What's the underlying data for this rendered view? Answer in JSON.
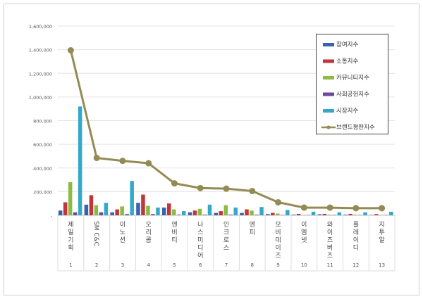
{
  "chart_data": {
    "type": "bar",
    "title": "",
    "xlabel": "",
    "ylabel": "",
    "ylim": [
      0,
      1600000
    ],
    "yticks": [
      "-",
      "200,000",
      "400,000",
      "600,000",
      "800,000",
      "1,000,000",
      "1,200,000",
      "1,400,000",
      "1,600,000"
    ],
    "ytick_values": [
      0,
      200000,
      400000,
      600000,
      800000,
      1000000,
      1200000,
      1400000,
      1600000
    ],
    "categories": [
      "제일기획",
      "SM C&C",
      "이노션",
      "오리콤",
      "엔비티",
      "나스미디어",
      "인크로스",
      "엔피",
      "모비데이즈",
      "이엠넷",
      "와이즈버즈",
      "플레이디",
      "지투알"
    ],
    "ranks": [
      "1",
      "2",
      "3",
      "4",
      "5",
      "6",
      "7",
      "8",
      "9",
      "10",
      "11",
      "12",
      "13"
    ],
    "legend_position": "top-right",
    "grid": true,
    "series": [
      {
        "name": "참여지수",
        "type": "bar",
        "color": "#3a62b0",
        "values": [
          40000,
          90000,
          25000,
          105000,
          65000,
          25000,
          20000,
          20000,
          10000,
          5000,
          8000,
          5000,
          3000
        ]
      },
      {
        "name": "소통지수",
        "type": "bar",
        "color": "#c0363a",
        "values": [
          110000,
          170000,
          50000,
          175000,
          100000,
          40000,
          35000,
          50000,
          20000,
          12000,
          12000,
          12000,
          10000
        ]
      },
      {
        "name": "커뮤니티지수",
        "type": "bar",
        "color": "#8cbb43",
        "values": [
          280000,
          85000,
          75000,
          80000,
          50000,
          55000,
          85000,
          40000,
          15000,
          3000,
          5000,
          5000,
          3000
        ]
      },
      {
        "name": "사회공헌지수",
        "type": "bar",
        "color": "#6a4a9c",
        "values": [
          25000,
          25000,
          10000,
          10000,
          5000,
          5000,
          5000,
          5000,
          3000,
          2000,
          3000,
          2000,
          2000
        ]
      },
      {
        "name": "시장지수",
        "type": "bar",
        "color": "#35a8c8",
        "values": [
          920000,
          105000,
          290000,
          65000,
          35000,
          90000,
          65000,
          70000,
          45000,
          30000,
          25000,
          25000,
          30000
        ]
      },
      {
        "name": "브랜드평판지수",
        "type": "line",
        "color": "#948a54",
        "values": [
          1395000,
          485000,
          460000,
          440000,
          270000,
          230000,
          225000,
          205000,
          110000,
          65000,
          65000,
          60000,
          60000
        ]
      }
    ]
  }
}
